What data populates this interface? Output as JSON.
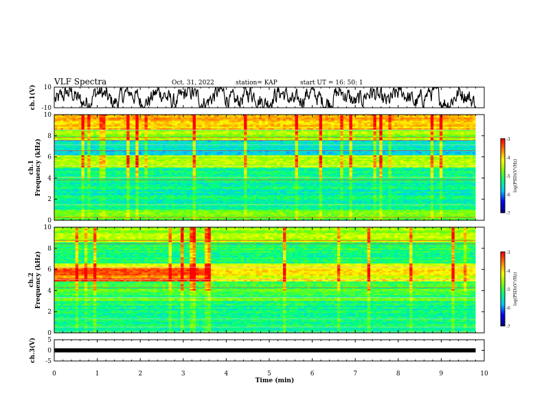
{
  "header": {
    "title": "VLF Spectra",
    "date": "Oct. 31, 2022",
    "station": "station= KAP",
    "start_ut": "start  UT =   16: 50: 1"
  },
  "chart_data": [
    {
      "type": "line",
      "name": "waveform-ch1",
      "ylabel": "ch.1(V)",
      "ylim": [
        -10,
        10
      ],
      "y_ticks": [
        "10",
        "-10"
      ],
      "xlim": [
        0,
        10
      ],
      "description_values": "dense oscillating voltage trace roughly between -8 and 9 V"
    },
    {
      "type": "heatmap",
      "name": "spectrogram-ch1",
      "ylabel": "ch.1\nFrequency (kHz)",
      "ylabel_lines": [
        "ch.1",
        "Frequency (kHz)"
      ],
      "ylim": [
        0,
        10
      ],
      "y_ticks": [
        "0",
        "2",
        "4",
        "6",
        "8",
        "10"
      ],
      "xlim": [
        0,
        9.8
      ],
      "colorbar": {
        "label": "log(PSD)(V²/Hz)",
        "range": [
          -7,
          -3
        ],
        "ticks": [
          "-3",
          "-4",
          "-5",
          "-6",
          "-7"
        ]
      }
    },
    {
      "type": "heatmap",
      "name": "spectrogram-ch2",
      "ylabel_lines": [
        "ch.2",
        "Frequency (kHz)"
      ],
      "ylim": [
        0,
        10
      ],
      "y_ticks": [
        "0",
        "2",
        "4",
        "6",
        "8",
        "10"
      ],
      "xlim": [
        0,
        9.8
      ],
      "colorbar": {
        "label": "log(PSD)(V²/Hz)",
        "range": [
          -7,
          -3
        ],
        "ticks": [
          "-3",
          "-4",
          "-5",
          "-6",
          "-7"
        ]
      }
    },
    {
      "type": "line",
      "name": "waveform-ch3",
      "ylabel": "ch.3(V)",
      "ylim": [
        -5,
        5
      ],
      "y_ticks": [
        "5",
        "0",
        "-5"
      ],
      "xlim": [
        0,
        10
      ],
      "level": 0
    }
  ],
  "x_axis": {
    "label": "Time  (min)",
    "ticks": [
      "0",
      "1",
      "2",
      "3",
      "4",
      "5",
      "6",
      "7",
      "8",
      "9",
      "10"
    ]
  },
  "colors": {
    "cmap": [
      "#000080",
      "#0000ff",
      "#00c8ff",
      "#00ff80",
      "#80ff00",
      "#ffff00",
      "#ff8000",
      "#ff0000",
      "#ffffff"
    ]
  }
}
